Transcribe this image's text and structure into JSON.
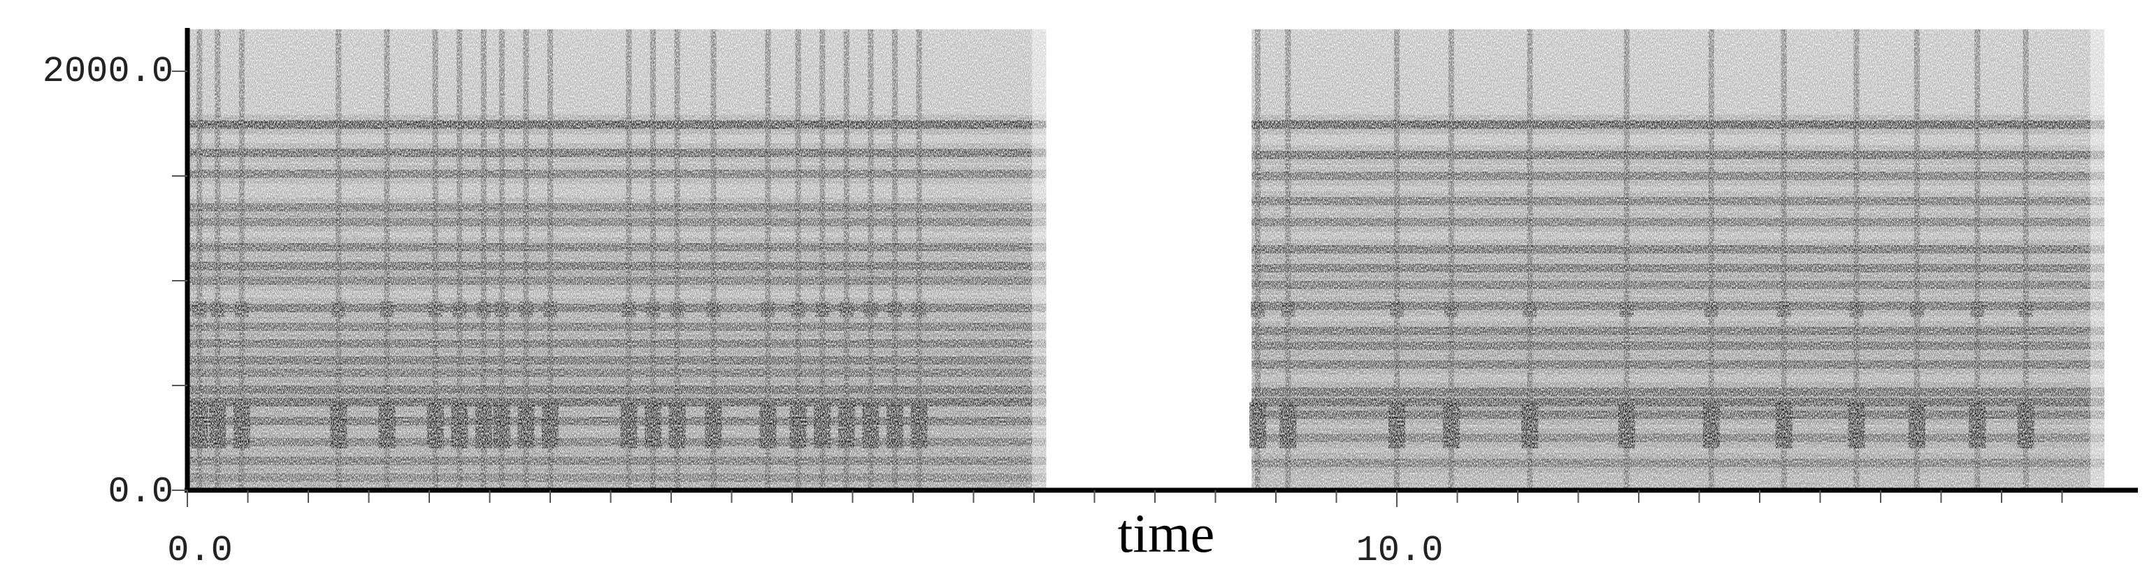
{
  "chart_data": {
    "type": "heatmap",
    "title": "",
    "xlabel": "time",
    "ylabel": "",
    "xlim": [
      0.0,
      16.0
    ],
    "ylim": [
      0.0,
      2200.0
    ],
    "x_tick_labels": [
      {
        "value": 0.0,
        "label": "0.0"
      },
      {
        "value": 10.0,
        "label": "10.0"
      }
    ],
    "y_tick_labels": [
      {
        "value": 0.0,
        "label": "0.0"
      },
      {
        "value": 2000.0,
        "label": "2000.0"
      }
    ],
    "x_minor_ticks": [
      0.5,
      1,
      1.5,
      2,
      2.5,
      3,
      3.5,
      4,
      4.5,
      5,
      5.5,
      6,
      6.5,
      7,
      7.5,
      8,
      8.5,
      9,
      9.5,
      10.5,
      11,
      11.5,
      12,
      12.5,
      13,
      13.5,
      14,
      14.5,
      15,
      15.5
    ],
    "y_minor_ticks": [
      500,
      1000,
      1500
    ],
    "segments": [
      {
        "x_range": [
          0.0,
          7.1
        ],
        "harmonic_bands_hz": [
          {
            "y": 1745,
            "level": 0.85
          },
          {
            "y": 1610,
            "level": 0.6
          },
          {
            "y": 1510,
            "level": 0.45
          },
          {
            "y": 1350,
            "level": 0.45
          },
          {
            "y": 1280,
            "level": 0.4
          },
          {
            "y": 1160,
            "level": 0.5
          },
          {
            "y": 1070,
            "level": 0.55
          },
          {
            "y": 1000,
            "level": 0.45
          },
          {
            "y": 870,
            "level": 0.55
          },
          {
            "y": 780,
            "level": 0.45
          },
          {
            "y": 700,
            "level": 0.5
          },
          {
            "y": 620,
            "level": 0.55
          },
          {
            "y": 560,
            "level": 0.45
          },
          {
            "y": 480,
            "level": 0.6
          },
          {
            "y": 420,
            "level": 0.75
          },
          {
            "y": 330,
            "level": 0.55
          },
          {
            "y": 230,
            "level": 0.4
          },
          {
            "y": 140,
            "level": 0.45
          },
          {
            "y": 60,
            "level": 0.3
          }
        ],
        "onsets": [
          0.1,
          0.25,
          0.45,
          1.25,
          1.65,
          2.05,
          2.25,
          2.45,
          2.6,
          2.8,
          3.0,
          3.65,
          3.85,
          4.05,
          4.35,
          4.8,
          5.05,
          5.25,
          5.45,
          5.65,
          5.85,
          6.05
        ]
      },
      {
        "x_range": [
          8.8,
          15.85
        ],
        "harmonic_bands_hz": [
          {
            "y": 1745,
            "level": 0.8
          },
          {
            "y": 1600,
            "level": 0.6
          },
          {
            "y": 1500,
            "level": 0.45
          },
          {
            "y": 1380,
            "level": 0.45
          },
          {
            "y": 1280,
            "level": 0.4
          },
          {
            "y": 1150,
            "level": 0.55
          },
          {
            "y": 1060,
            "level": 0.5
          },
          {
            "y": 980,
            "level": 0.45
          },
          {
            "y": 880,
            "level": 0.55
          },
          {
            "y": 760,
            "level": 0.55
          },
          {
            "y": 690,
            "level": 0.5
          },
          {
            "y": 600,
            "level": 0.5
          },
          {
            "y": 470,
            "level": 0.6
          },
          {
            "y": 420,
            "level": 0.7
          },
          {
            "y": 360,
            "level": 0.55
          },
          {
            "y": 250,
            "level": 0.35
          },
          {
            "y": 130,
            "level": 0.35
          }
        ],
        "onsets": [
          8.85,
          9.1,
          10.0,
          10.45,
          11.1,
          11.9,
          12.6,
          13.2,
          13.8,
          14.3,
          14.8,
          15.2
        ]
      }
    ],
    "colormap": {
      "low": "#ffffff",
      "high": "#000000"
    },
    "grid": false,
    "legend": "none"
  }
}
